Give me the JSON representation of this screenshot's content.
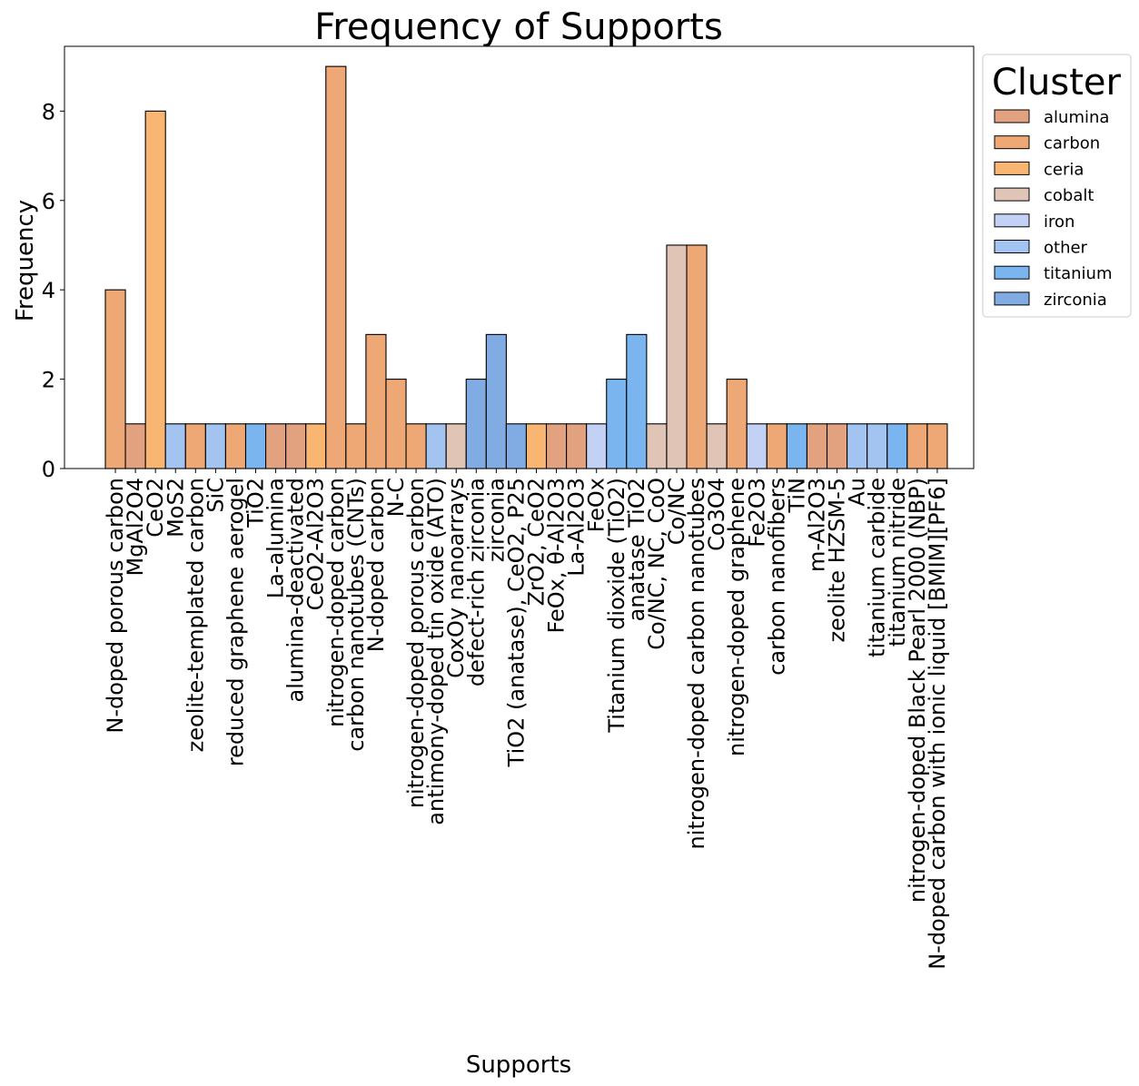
{
  "chart_data": {
    "type": "bar",
    "title": "Frequency of Supports",
    "xlabel": "Supports",
    "ylabel": "Frequency",
    "ylim": [
      0,
      9.45
    ],
    "yticks": [
      0,
      2,
      4,
      6,
      8
    ],
    "grid": false,
    "legend": {
      "title": "Cluster",
      "placement": "outside upper right",
      "entries": [
        {
          "name": "alumina",
          "color": "#e3a27f"
        },
        {
          "name": "carbon",
          "color": "#eda876"
        },
        {
          "name": "ceria",
          "color": "#f9b672"
        },
        {
          "name": "cobalt",
          "color": "#e0c4b6"
        },
        {
          "name": "iron",
          "color": "#c3d2f4"
        },
        {
          "name": "other",
          "color": "#a3c4f1"
        },
        {
          "name": "titanium",
          "color": "#7ab5ef"
        },
        {
          "name": "zirconia",
          "color": "#80ace3"
        }
      ]
    },
    "categories": [
      "N-doped porous carbon",
      "MgAl2O4",
      "CeO2",
      "MoS2",
      "zeolite-templated carbon",
      "SiC",
      "reduced graphene aerogel",
      "TiO2",
      "La-alumina",
      "alumina-deactivated",
      "CeO2-Al2O3",
      "nitrogen-doped carbon",
      "carbon nanotubes (CNTs)",
      "N-doped carbon",
      "N-C",
      "nitrogen-doped porous carbon",
      "antimony-doped tin oxide (ATO)",
      "CoxOy nanoarrays",
      "defect-rich zirconia",
      "zirconia",
      "TiO2 (anatase), CeO2, P25",
      "ZrO2, CeO2",
      "FeOx, θ-Al2O3",
      "La-Al2O3",
      "FeOx",
      "Titanium dioxide (TiO2)",
      "anatase TiO2",
      "Co/NC, NC, CoO",
      "Co/NC",
      "nitrogen-doped carbon nanotubes",
      "Co3O4",
      "nitrogen-doped graphene",
      "Fe2O3",
      "carbon nanofibers",
      "TiN",
      "m-Al2O3",
      "zeolite HZSM-5",
      "Au",
      "titanium carbide",
      "titanium nitride",
      "nitrogen-doped Black Pearl 2000 (NBP)",
      "N-doped carbon with ionic liquid [BMIM][PF6]"
    ],
    "values": [
      4,
      1,
      8,
      1,
      1,
      1,
      1,
      1,
      1,
      1,
      1,
      9,
      1,
      3,
      2,
      1,
      1,
      1,
      2,
      3,
      1,
      1,
      1,
      1,
      1,
      2,
      3,
      1,
      5,
      5,
      1,
      2,
      1,
      1,
      1,
      1,
      1,
      1,
      1,
      1,
      1,
      1
    ],
    "clusters": [
      "carbon",
      "alumina",
      "ceria",
      "other",
      "carbon",
      "other",
      "carbon",
      "titanium",
      "alumina",
      "alumina",
      "ceria",
      "carbon",
      "carbon",
      "carbon",
      "carbon",
      "carbon",
      "other",
      "cobalt",
      "zirconia",
      "zirconia",
      "zirconia",
      "ceria",
      "alumina",
      "alumina",
      "iron",
      "titanium",
      "titanium",
      "cobalt",
      "cobalt",
      "carbon",
      "cobalt",
      "carbon",
      "iron",
      "carbon",
      "titanium",
      "alumina",
      "alumina",
      "other",
      "other",
      "titanium",
      "carbon",
      "carbon"
    ]
  }
}
